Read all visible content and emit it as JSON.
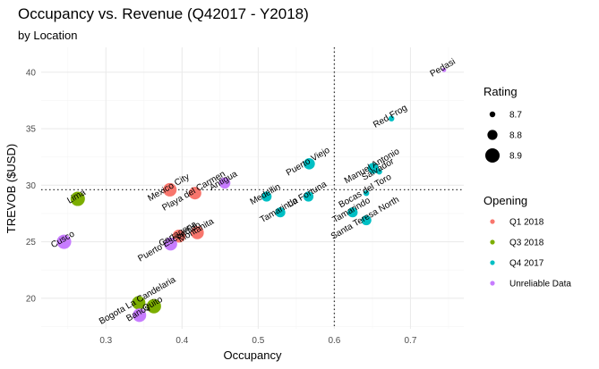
{
  "colors": {
    "Q1 2018": "#F8766D",
    "Q3 2018": "#7CAE00",
    "Q4 2017": "#00BFC4",
    "Unreliable Data": "#C77CFF",
    "grid_major": "#ebebeb",
    "grid_minor": "#f5f5f5",
    "refline": "#333333"
  },
  "chart_data": {
    "type": "scatter",
    "title": "Occupancy vs. Revenue (Q42017 - Y2018)",
    "subtitle": "by Location",
    "xlabel": "Occupancy",
    "ylabel": "TREVOB ($USD)",
    "xlim": [
      0.215,
      0.77
    ],
    "ylim": [
      17.3,
      42.2
    ],
    "xticks": [
      0.3,
      0.4,
      0.5,
      0.6,
      0.7
    ],
    "xtick_labels": [
      "0.3",
      "0.4",
      "0.5",
      "0.6",
      "0.7"
    ],
    "yticks": [
      20,
      25,
      30,
      35,
      40
    ],
    "ytick_labels": [
      "20",
      "25",
      "30",
      "35",
      "40"
    ],
    "ref_x": 0.6,
    "ref_y": 29.6,
    "size_range": [
      8.65,
      8.92
    ],
    "points": [
      {
        "label": "Pedasi",
        "x": 0.744,
        "y": 40.2,
        "rating": 8.67,
        "opening": "Unreliable Data"
      },
      {
        "label": "Red Frog",
        "x": 0.675,
        "y": 35.9,
        "rating": 8.7,
        "opening": "Q4 2017"
      },
      {
        "label": "Puerto Viejo",
        "x": 0.567,
        "y": 31.9,
        "rating": 8.83,
        "opening": "Q4 2017"
      },
      {
        "label": "Manuel Antonio",
        "x": 0.651,
        "y": 31.5,
        "rating": 8.82,
        "opening": "Q4 2017"
      },
      {
        "label": "Salvador",
        "x": 0.659,
        "y": 31.2,
        "rating": 8.7,
        "opening": "Q4 2017"
      },
      {
        "label": "Bocas del Toro",
        "x": 0.642,
        "y": 29.3,
        "rating": 8.7,
        "opening": "Q4 2017"
      },
      {
        "label": "Mexico City",
        "x": 0.384,
        "y": 29.6,
        "rating": 8.88,
        "opening": "Q1 2018"
      },
      {
        "label": "Playa del Carmen",
        "x": 0.417,
        "y": 29.3,
        "rating": 8.86,
        "opening": "Q1 2018"
      },
      {
        "label": "Antigua",
        "x": 0.456,
        "y": 30.2,
        "rating": 8.83,
        "opening": "Unreliable Data"
      },
      {
        "label": "Medellin",
        "x": 0.511,
        "y": 29.0,
        "rating": 8.8,
        "opening": "Q4 2017"
      },
      {
        "label": "La Fortuna",
        "x": 0.566,
        "y": 29.0,
        "rating": 8.8,
        "opening": "Q4 2017"
      },
      {
        "label": "Lima",
        "x": 0.263,
        "y": 28.8,
        "rating": 8.9,
        "opening": "Q3 2018"
      },
      {
        "label": "Tamarindo",
        "x": 0.529,
        "y": 27.6,
        "rating": 8.8,
        "opening": "Q4 2017"
      },
      {
        "label": "Tamarindo",
        "x": 0.624,
        "y": 27.6,
        "rating": 8.8,
        "opening": "Q4 2017"
      },
      {
        "label": "Santa Teresa North",
        "x": 0.642,
        "y": 26.9,
        "rating": 8.8,
        "opening": "Q4 2017"
      },
      {
        "label": "Cartagena",
        "x": 0.396,
        "y": 25.5,
        "rating": 8.87,
        "opening": "Q1 2018"
      },
      {
        "label": "Puerto Escondido",
        "x": 0.385,
        "y": 24.8,
        "rating": 8.87,
        "opening": "Unreliable Data"
      },
      {
        "label": "Montanita",
        "x": 0.42,
        "y": 25.8,
        "rating": 8.87,
        "opening": "Q1 2018"
      },
      {
        "label": "Cusco",
        "x": 0.245,
        "y": 25.0,
        "rating": 8.9,
        "opening": "Unreliable Data"
      },
      {
        "label": "Bogota La Candelaria",
        "x": 0.343,
        "y": 19.6,
        "rating": 8.88,
        "opening": "Q3 2018"
      },
      {
        "label": "Quito",
        "x": 0.363,
        "y": 19.3,
        "rating": 8.9,
        "opening": "Q3 2018"
      },
      {
        "label": "Banos",
        "x": 0.344,
        "y": 18.5,
        "rating": 8.88,
        "opening": "Unreliable Data"
      }
    ],
    "legend_size": {
      "title": "Rating",
      "items": [
        {
          "label": "8.7",
          "value": 8.7
        },
        {
          "label": "8.8",
          "value": 8.8
        },
        {
          "label": "8.9",
          "value": 8.9
        }
      ]
    },
    "legend_color": {
      "title": "Opening",
      "items": [
        {
          "label": "Q1 2018",
          "key": "Q1 2018"
        },
        {
          "label": "Q3 2018",
          "key": "Q3 2018"
        },
        {
          "label": "Q4 2017",
          "key": "Q4 2017"
        },
        {
          "label": "Unreliable Data",
          "key": "Unreliable Data"
        }
      ]
    }
  }
}
